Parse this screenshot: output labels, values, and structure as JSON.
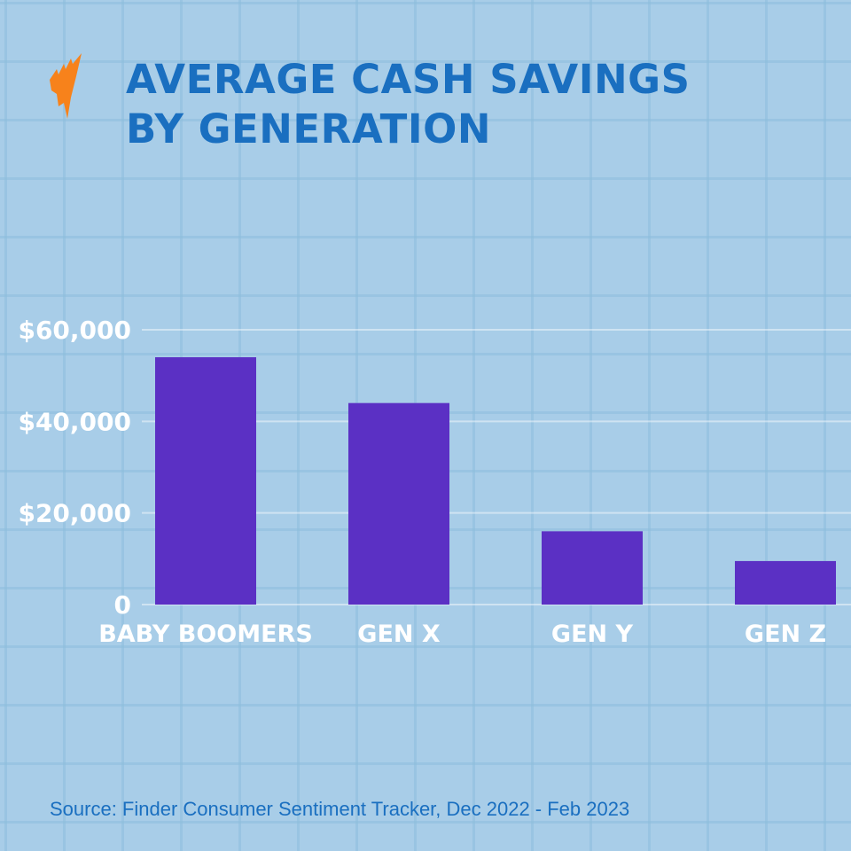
{
  "logo": {
    "name": "sbs-logo",
    "color": "#f7821b"
  },
  "chart_data": {
    "type": "bar",
    "title": "AVERAGE CASH SAVINGS BY GENERATION",
    "title_lines": [
      "AVERAGE CASH SAVINGS",
      "BY GENERATION"
    ],
    "categories": [
      "BABY BOOMERS",
      "GEN X",
      "GEN Y",
      "GEN Z"
    ],
    "values": [
      54000,
      44000,
      16000,
      9500
    ],
    "ylim": [
      0,
      60000
    ],
    "yticks": [
      0,
      20000,
      40000,
      60000
    ],
    "ytick_labels": [
      "0",
      "$20,000",
      "$40,000",
      "$60,000"
    ],
    "xlabel": "",
    "ylabel": "",
    "grid": true,
    "bar_color": "#5b30c4",
    "title_color": "#1a6fc0",
    "label_color": "#ffffff"
  },
  "source": "Source: Finder Consumer Sentiment Tracker, Dec 2022 - Feb 2023"
}
